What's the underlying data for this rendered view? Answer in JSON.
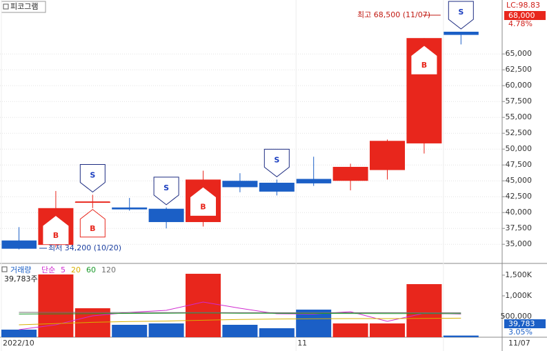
{
  "chart_data": [
    {
      "type": "candlestick",
      "title": "피코그램",
      "categories": [
        "2022/10",
        null,
        null,
        null,
        null,
        null,
        null,
        null,
        "11",
        null,
        null,
        null,
        "11/07"
      ],
      "open": [
        35600,
        34900,
        41700,
        40800,
        40600,
        38500,
        45000,
        44700,
        45300,
        45000,
        46700,
        50900,
        68500
      ],
      "high": [
        37700,
        43400,
        42800,
        42300,
        40800,
        46600,
        46200,
        45200,
        48800,
        47700,
        51500,
        67500,
        68500
      ],
      "low": [
        34200,
        34500,
        40700,
        40300,
        37500,
        37800,
        43200,
        42700,
        44200,
        43500,
        45200,
        49300,
        66500
      ],
      "close": [
        34300,
        40700,
        41700,
        40500,
        38500,
        45200,
        44000,
        43300,
        44600,
        47200,
        51300,
        67500,
        68000
      ],
      "up_color": "#e8261c",
      "down_color": "#1b5fc6",
      "signals": [
        [],
        [
          "B"
        ],
        [
          "S",
          "B"
        ],
        [],
        [
          "S"
        ],
        [
          "B"
        ],
        [],
        [
          "S"
        ],
        [],
        [],
        [],
        [
          "B"
        ],
        [
          "S"
        ]
      ],
      "ylim": [
        32200,
        73500
      ],
      "yticks": [
        {
          "value": 35000,
          "label": "35,000"
        },
        {
          "value": 37500,
          "label": "37,500"
        },
        {
          "value": 40000,
          "label": "40,000"
        },
        {
          "value": 42500,
          "label": "42,500"
        },
        {
          "value": 45000,
          "label": "45,000"
        },
        {
          "value": 47500,
          "label": "47,500"
        },
        {
          "value": 50000,
          "label": "50,000"
        },
        {
          "value": 52500,
          "label": "52,500"
        },
        {
          "value": 55000,
          "label": "55,000"
        },
        {
          "value": 57500,
          "label": "57,500"
        },
        {
          "value": 60000,
          "label": "60,000"
        },
        {
          "value": 62500,
          "label": "62,500"
        },
        {
          "value": 65000,
          "label": "65,000"
        }
      ],
      "grid": true,
      "lc_label": "LC:98.83",
      "current_price_label": "68,000",
      "change_label": "4.78%",
      "high_annotation": "최고 68,500 (11/07)",
      "low_annotation": "최저 34,200 (10/20)"
    },
    {
      "type": "volume",
      "title": "거래량",
      "legend": [
        "단순",
        "5",
        "20",
        "60",
        "120"
      ],
      "values": [
        183,
        1517,
        700,
        300,
        333,
        1533,
        300,
        217,
        667,
        333,
        333,
        1283,
        39.783
      ],
      "ma": [
        {
          "name": "5",
          "color": "#d02ad0",
          "values": [
            183,
            300,
            517,
            600,
            650,
            850,
            700,
            567,
            560,
            617,
            383,
            580,
            560
          ]
        },
        {
          "name": "20",
          "color": "#d8b000",
          "values": [
            300,
            330,
            360,
            380,
            390,
            410,
            430,
            440,
            445,
            450,
            450,
            455,
            460
          ]
        },
        {
          "name": "60",
          "color": "#1a9a2a",
          "values": [
            560,
            565,
            570,
            575,
            580,
            585,
            580,
            578,
            575,
            572,
            570,
            570,
            570
          ]
        },
        {
          "name": "120",
          "color": "#707070",
          "values": [
            600,
            600,
            598,
            596,
            595,
            595,
            594,
            594,
            593,
            592,
            592,
            591,
            590
          ]
        }
      ],
      "ylim": [
        0,
        1650
      ],
      "yticks": [
        {
          "value": 500,
          "label": "500,000"
        },
        {
          "value": 1000,
          "label": "1,000K"
        },
        {
          "value": 1500,
          "label": "1,500K"
        }
      ],
      "volume_caption": "39,783주(3.05%)",
      "current_volume_label": "39,783",
      "volume_ratio_label": "3.05%"
    }
  ]
}
